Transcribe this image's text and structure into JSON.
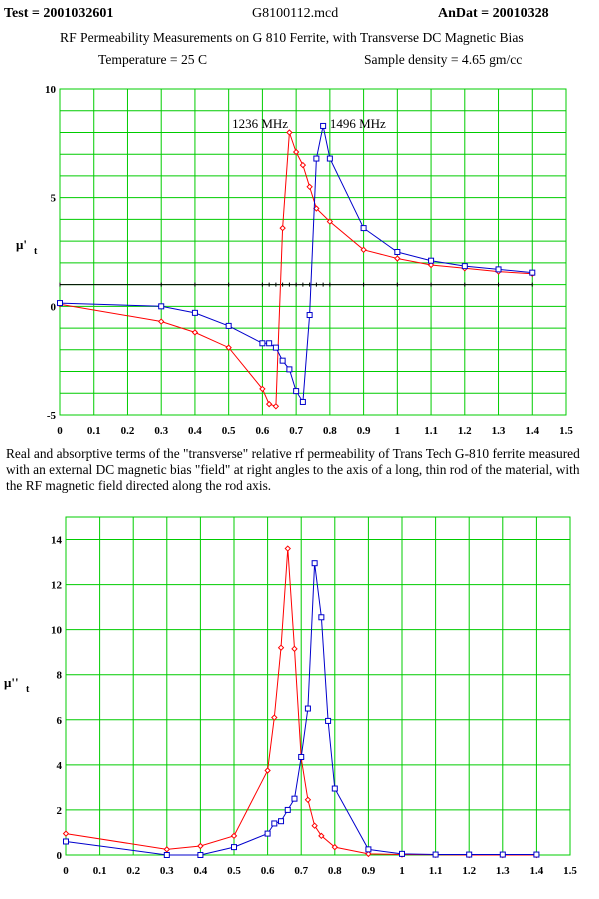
{
  "header": {
    "test": "Test = 2001032601",
    "file": "G8100112.mcd",
    "andat": "AnDat = 20010328",
    "title": "RF Permeability Measurements on  G 810 Ferrite, with Transverse DC Magnetic Bias",
    "temperature": "Temperature = 25 C",
    "density": "Sample density = 4.65 gm/cc"
  },
  "caption": "Real and absorptive terms of the \"transverse\" relative rf permeability of Trans Tech G-810 ferrite measured with an external  DC magnetic bias \"field\" at right angles to the axis of a long, thin rod of the material, with the RF magnetic field directed along the rod axis.",
  "colors": {
    "grid": "#00cc00",
    "series_red": "#ff0000",
    "series_blue": "#0000cc",
    "baseline": "#000000"
  },
  "chart_data": [
    {
      "type": "line",
      "ylabel_main": "μ'",
      "ylabel_sub": "t",
      "xlim": [
        0,
        1.5
      ],
      "ylim": [
        -5,
        10
      ],
      "xticks": [
        "0",
        "0.1",
        "0.2",
        "0.3",
        "0.4",
        "0.5",
        "0.6",
        "0.7",
        "0.8",
        "0.9",
        "1",
        "1.1",
        "1.2",
        "1.3",
        "1.4",
        "1.5"
      ],
      "yticks": [
        "10",
        "5",
        "0",
        "-5"
      ],
      "ytick_values": [
        10,
        5,
        0,
        -5
      ],
      "baseline": 1,
      "annotations": [
        {
          "text": "1236 MHz",
          "x": 0.676,
          "y": 8.2
        },
        {
          "text": "1496 MHz",
          "x": 0.8,
          "y": 8.2
        }
      ],
      "series": [
        {
          "color": "#ff0000",
          "marker": "diamond",
          "x": [
            0,
            0.3,
            0.4,
            0.5,
            0.6,
            0.62,
            0.64,
            0.66,
            0.68,
            0.7,
            0.72,
            0.74,
            0.76,
            0.8,
            0.9,
            1.0,
            1.1,
            1.2,
            1.3,
            1.4
          ],
          "y": [
            0.1,
            -0.7,
            -1.2,
            -1.9,
            -3.8,
            -4.5,
            -4.6,
            3.6,
            8.0,
            7.1,
            6.5,
            5.5,
            4.5,
            3.9,
            2.6,
            2.2,
            1.9,
            1.75,
            1.6,
            1.5
          ]
        },
        {
          "color": "#0000cc",
          "marker": "square",
          "x": [
            0,
            0.3,
            0.4,
            0.5,
            0.6,
            0.62,
            0.64,
            0.66,
            0.68,
            0.7,
            0.72,
            0.74,
            0.76,
            0.78,
            0.8,
            0.9,
            1.0,
            1.1,
            1.2,
            1.3,
            1.4
          ],
          "y": [
            0.15,
            0.0,
            -0.3,
            -0.9,
            -1.7,
            -1.7,
            -1.9,
            -2.5,
            -2.9,
            -3.9,
            -4.4,
            -0.4,
            6.8,
            8.3,
            6.8,
            3.6,
            2.5,
            2.1,
            1.85,
            1.7,
            1.55
          ]
        }
      ]
    },
    {
      "type": "line",
      "ylabel_main": "μ''",
      "ylabel_sub": "t",
      "xlim": [
        0,
        1.5
      ],
      "ylim": [
        0,
        15
      ],
      "xticks": [
        "0",
        "0.1",
        "0.2",
        "0.3",
        "0.4",
        "0.5",
        "0.6",
        "0.7",
        "0.8",
        "0.9",
        "1",
        "1.1",
        "1.2",
        "1.3",
        "1.4",
        "1.5"
      ],
      "yticks": [
        "14",
        "12",
        "10",
        "8",
        "6",
        "4",
        "2",
        "0"
      ],
      "ytick_values": [
        14,
        12,
        10,
        8,
        6,
        4,
        2,
        0
      ],
      "series": [
        {
          "color": "#ff0000",
          "marker": "diamond",
          "x": [
            0,
            0.3,
            0.4,
            0.5,
            0.6,
            0.62,
            0.64,
            0.66,
            0.68,
            0.7,
            0.72,
            0.74,
            0.76,
            0.8,
            0.9,
            1.0,
            1.1,
            1.2,
            1.3,
            1.4
          ],
          "y": [
            0.95,
            0.25,
            0.4,
            0.85,
            3.75,
            6.1,
            9.2,
            13.6,
            9.15,
            4.3,
            2.45,
            1.3,
            0.85,
            0.35,
            0.05,
            0.02,
            0.01,
            0.0,
            0.0,
            0.0
          ]
        },
        {
          "color": "#0000cc",
          "marker": "square",
          "x": [
            0,
            0.3,
            0.4,
            0.5,
            0.6,
            0.62,
            0.64,
            0.66,
            0.68,
            0.7,
            0.72,
            0.74,
            0.76,
            0.78,
            0.8,
            0.9,
            1.0,
            1.1,
            1.2,
            1.3,
            1.4
          ],
          "y": [
            0.6,
            0.0,
            0.0,
            0.35,
            0.95,
            1.4,
            1.5,
            2.0,
            2.5,
            4.35,
            6.5,
            12.95,
            10.55,
            5.95,
            2.95,
            0.25,
            0.05,
            0.02,
            0.02,
            0.02,
            0.02
          ]
        }
      ]
    }
  ]
}
